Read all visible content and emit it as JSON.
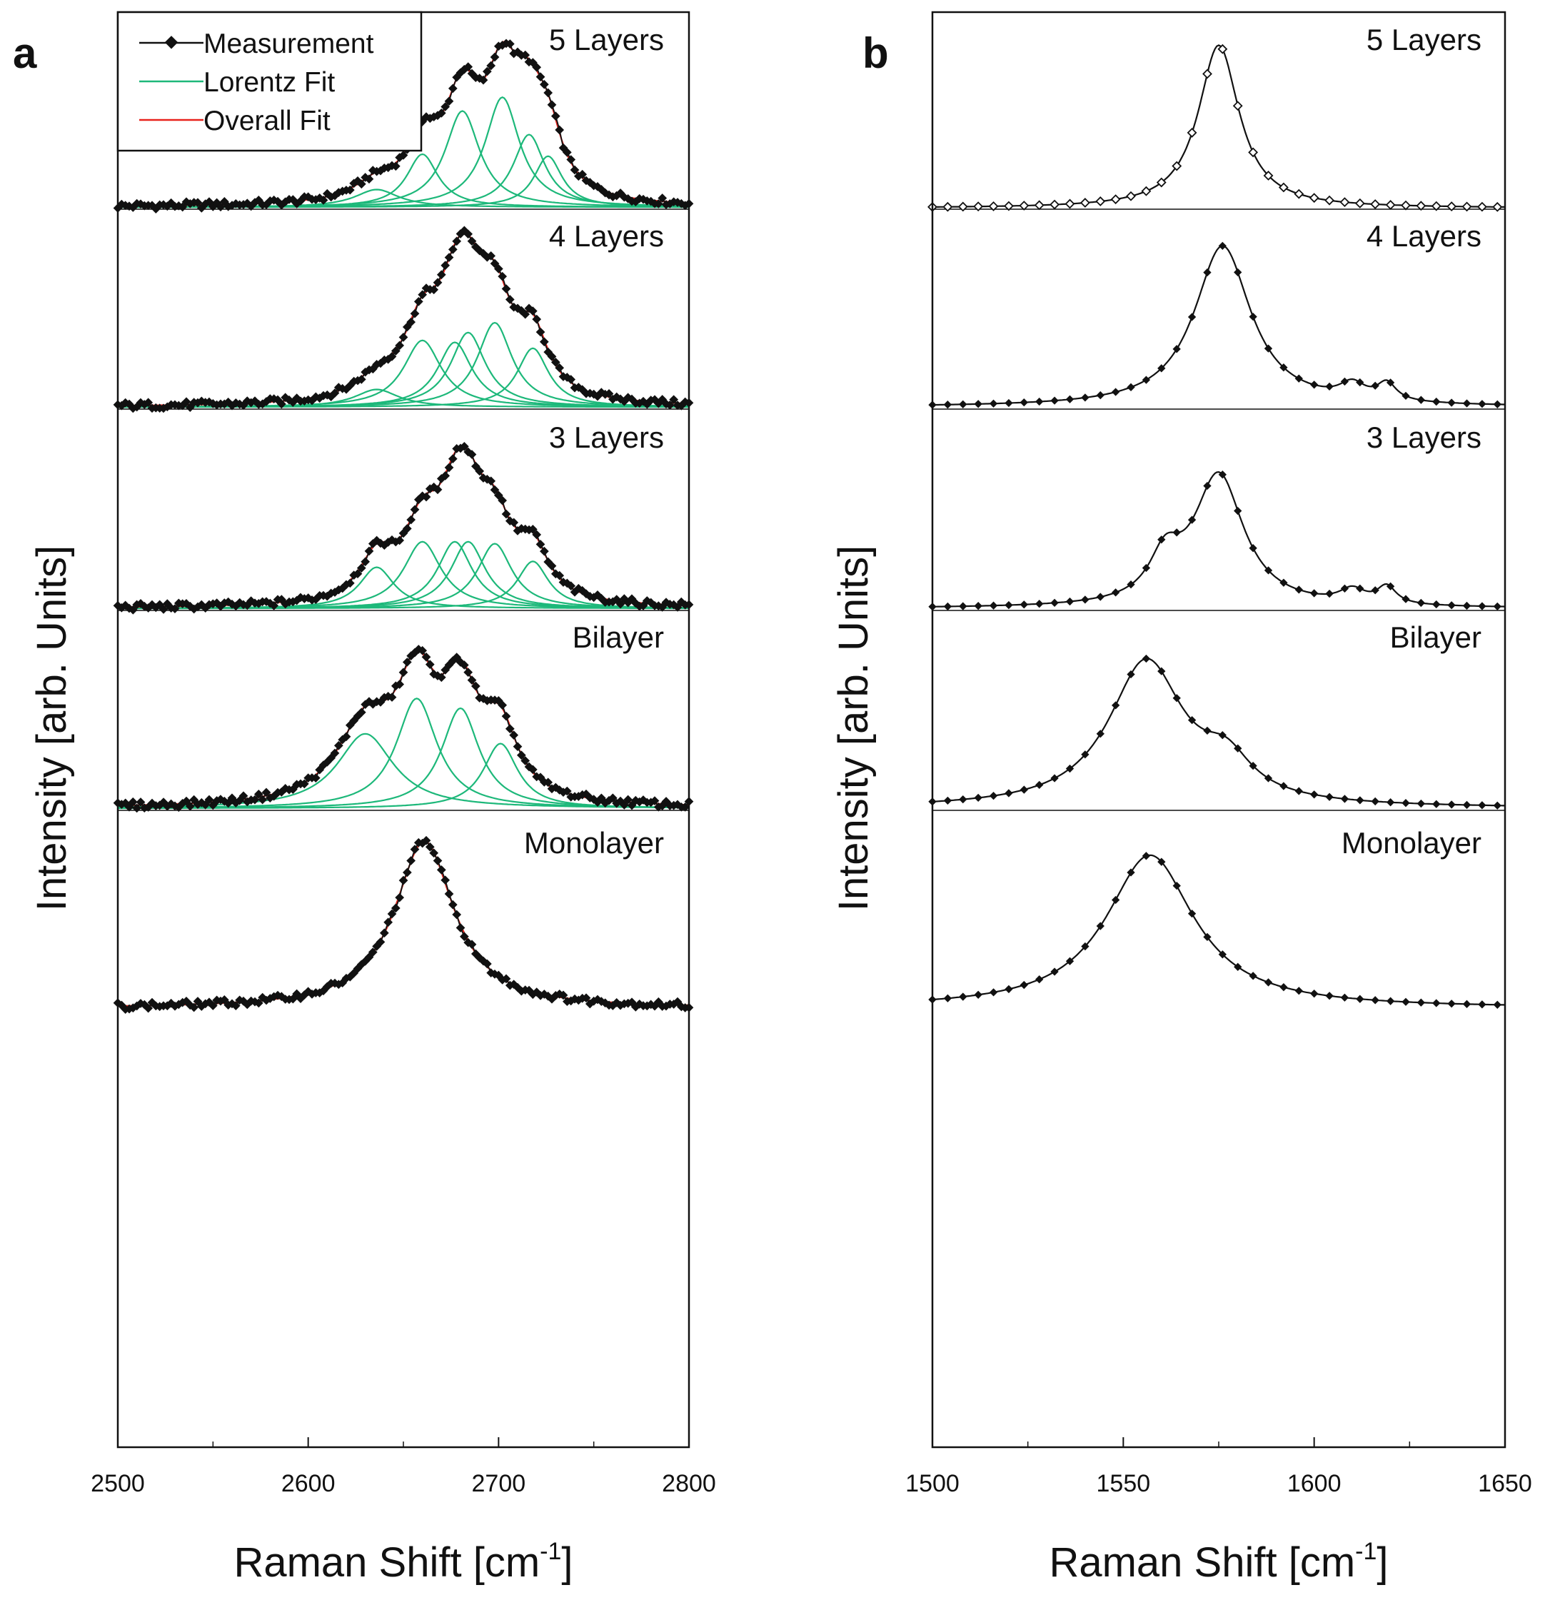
{
  "chart_data": [
    {
      "type": "line",
      "panel": "a",
      "title": "",
      "xlabel": "Raman Shift [cm-1]",
      "xlabel_main": "Raman Shift [cm",
      "xlabel_sup": "-1",
      "xlabel_end": "]",
      "ylabel": "Intensity [arb. Units]",
      "xlim": [
        2500,
        2800
      ],
      "xticks": [
        2500,
        2600,
        2700,
        2800
      ],
      "legend": {
        "position": "top-left",
        "entries": [
          {
            "label": "Measurement",
            "color": "#111111"
          },
          {
            "label": "Lorentz Fit",
            "color": "#1db87a"
          },
          {
            "label": "Overall Fit",
            "color": "#e8221c"
          }
        ]
      },
      "colors": {
        "measurement": "#111111",
        "lorentz": "#1db87a",
        "overall": "#e8221c"
      },
      "subplots": [
        {
          "label": "5 Layers",
          "baseline": 0.01,
          "peaks": [
            {
              "center": 2636,
              "amplitude": 0.09,
              "hwhm": 14
            },
            {
              "center": 2660,
              "amplitude": 0.27,
              "hwhm": 10
            },
            {
              "center": 2681,
              "amplitude": 0.49,
              "hwhm": 11
            },
            {
              "center": 2702,
              "amplitude": 0.56,
              "hwhm": 11
            },
            {
              "center": 2716,
              "amplitude": 0.37,
              "hwhm": 10
            },
            {
              "center": 2726,
              "amplitude": 0.26,
              "hwhm": 9
            }
          ]
        },
        {
          "label": "4 Layers",
          "baseline": 0.01,
          "peaks": [
            {
              "center": 2636,
              "amplitude": 0.09,
              "hwhm": 14
            },
            {
              "center": 2660,
              "amplitude": 0.34,
              "hwhm": 12
            },
            {
              "center": 2677,
              "amplitude": 0.33,
              "hwhm": 11
            },
            {
              "center": 2684,
              "amplitude": 0.38,
              "hwhm": 11
            },
            {
              "center": 2698,
              "amplitude": 0.43,
              "hwhm": 11
            },
            {
              "center": 2718,
              "amplitude": 0.3,
              "hwhm": 10
            }
          ]
        },
        {
          "label": "3 Layers",
          "baseline": 0.01,
          "peaks": [
            {
              "center": 2636,
              "amplitude": 0.21,
              "hwhm": 11
            },
            {
              "center": 2660,
              "amplitude": 0.34,
              "hwhm": 12
            },
            {
              "center": 2677,
              "amplitude": 0.34,
              "hwhm": 11
            },
            {
              "center": 2684,
              "amplitude": 0.34,
              "hwhm": 11
            },
            {
              "center": 2698,
              "amplitude": 0.33,
              "hwhm": 11
            },
            {
              "center": 2718,
              "amplitude": 0.24,
              "hwhm": 10
            }
          ]
        },
        {
          "label": "Bilayer",
          "baseline": 0.01,
          "peaks": [
            {
              "center": 2630,
              "amplitude": 0.38,
              "hwhm": 18
            },
            {
              "center": 2657,
              "amplitude": 0.56,
              "hwhm": 13
            },
            {
              "center": 2680,
              "amplitude": 0.51,
              "hwhm": 12
            },
            {
              "center": 2701,
              "amplitude": 0.33,
              "hwhm": 11
            }
          ]
        },
        {
          "label": "Monolayer",
          "baseline": 0.01,
          "peaks": [
            {
              "center": 2661,
              "amplitude": 0.85,
              "hwhm": 19
            }
          ]
        }
      ]
    },
    {
      "type": "line",
      "panel": "b",
      "title": "",
      "xlabel": "Raman Shift [cm-1]",
      "xlabel_main": "Raman Shift [cm",
      "xlabel_sup": "-1",
      "xlabel_end": "]",
      "ylabel": "Intensity [arb. Units]",
      "xlim": [
        1500,
        1650
      ],
      "xticks": [
        1500,
        1550,
        1600,
        1650
      ],
      "point_spacing": 4,
      "color": "#111111",
      "subplots": [
        {
          "label": "5 Layers",
          "baseline": 0.005,
          "peaks": [
            {
              "center": 1575,
              "amplitude": 0.83,
              "hwhm": 6.5
            }
          ]
        },
        {
          "label": "4 Layers",
          "baseline": 0.01,
          "peaks": [
            {
              "center": 1576,
              "amplitude": 0.82,
              "hwhm": 9
            },
            {
              "center": 1610,
              "amplitude": 0.08,
              "hwhm": 4
            },
            {
              "center": 1619,
              "amplitude": 0.09,
              "hwhm": 3
            }
          ]
        },
        {
          "label": "3 Layers",
          "baseline": 0.01,
          "peaks": [
            {
              "center": 1575,
              "amplitude": 0.67,
              "hwhm": 8
            },
            {
              "center": 1561,
              "amplitude": 0.21,
              "hwhm": 5
            },
            {
              "center": 1610,
              "amplitude": 0.07,
              "hwhm": 4
            },
            {
              "center": 1619,
              "amplitude": 0.09,
              "hwhm": 3
            }
          ]
        },
        {
          "label": "Bilayer",
          "baseline": 0.01,
          "peaks": [
            {
              "center": 1556,
              "amplitude": 0.74,
              "hwhm": 12
            },
            {
              "center": 1577,
              "amplitude": 0.18,
              "hwhm": 8
            }
          ]
        },
        {
          "label": "Monolayer",
          "baseline": 0.01,
          "peaks": [
            {
              "center": 1557,
              "amplitude": 0.78,
              "hwhm": 14
            }
          ]
        }
      ]
    }
  ]
}
